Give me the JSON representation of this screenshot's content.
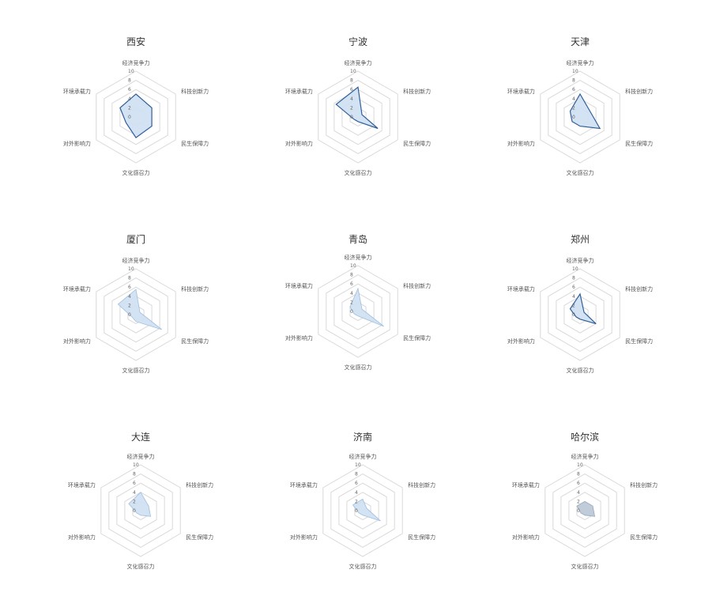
{
  "chart_data": [
    {
      "type": "radar",
      "title": "西安",
      "axes": [
        "经济竞争力",
        "科技创新力",
        "民生保障力",
        "文化感召力",
        "对外影响力",
        "环境承载力"
      ],
      "ticks": [
        0,
        2,
        4,
        6,
        8,
        10
      ],
      "ylim": [
        0,
        10
      ],
      "series": [
        {
          "values": [
            5,
            4,
            4,
            4.5,
            2.5,
            4
          ],
          "style": "filled-dark-outline"
        }
      ]
    },
    {
      "type": "radar",
      "title": "宁波",
      "axes": [
        "经济竞争力",
        "科技创新力",
        "民生保障力",
        "文化感召力",
        "对外影响力",
        "环境承载力"
      ],
      "ticks": [
        0,
        2,
        4,
        6,
        8,
        10
      ],
      "ylim": [
        0,
        10
      ],
      "series": [
        {
          "values": [
            6.5,
            1,
            5,
            1,
            1,
            5.5
          ],
          "style": "filled-dark-outline"
        }
      ]
    },
    {
      "type": "radar",
      "title": "天津",
      "axes": [
        "经济竞争力",
        "科技创新力",
        "民生保障力",
        "文化感召力",
        "对外影响力",
        "环境承载力"
      ],
      "ticks": [
        0,
        2,
        4,
        6,
        8,
        10
      ],
      "ylim": [
        0,
        10
      ],
      "series": [
        {
          "values": [
            5,
            2.5,
            5,
            2,
            2,
            2.5
          ],
          "style": "filled-dark-outline"
        }
      ]
    },
    {
      "type": "radar",
      "title": "厦门",
      "axes": [
        "经济竞争力",
        "科技创新力",
        "民生保障力",
        "文化感召力",
        "对外影响力",
        "环境承载力"
      ],
      "ticks": [
        0,
        2,
        4,
        6,
        8,
        10
      ],
      "ylim": [
        0,
        10
      ],
      "series": [
        {
          "values": [
            5.5,
            1,
            6.5,
            1.5,
            1,
            4.5
          ],
          "style": "filled-light"
        }
      ]
    },
    {
      "type": "radar",
      "title": "青岛",
      "axes": [
        "经济竞争力",
        "科技创新力",
        "民生保障力",
        "文化感召力",
        "对外影响力",
        "环境承载力"
      ],
      "ticks": [
        0,
        2,
        4,
        6,
        8,
        10
      ],
      "ylim": [
        0,
        10
      ],
      "series": [
        {
          "values": [
            5,
            1,
            6.5,
            1,
            1,
            2
          ],
          "style": "filled-light"
        }
      ]
    },
    {
      "type": "radar",
      "title": "郑州",
      "axes": [
        "经济竞争力",
        "科技创新力",
        "民生保障力",
        "文化感召力",
        "对外影响力",
        "环境承载力"
      ],
      "ticks": [
        0,
        2,
        4,
        6,
        8,
        10
      ],
      "ylim": [
        0,
        10
      ],
      "series": [
        {
          "values": [
            4.5,
            1,
            4,
            1,
            1,
            2.5
          ],
          "style": "filled-dark-outline"
        }
      ]
    },
    {
      "type": "radar",
      "title": "大连",
      "axes": [
        "经济竞争力",
        "科技创新力",
        "民生保障力",
        "文化感召力",
        "对外影响力",
        "环境承载力"
      ],
      "ticks": [
        0,
        2,
        4,
        6,
        8,
        10
      ],
      "ylim": [
        0,
        10
      ],
      "series": [
        {
          "values": [
            4,
            2,
            2.5,
            1,
            1,
            3
          ],
          "style": "filled-light"
        }
      ]
    },
    {
      "type": "radar",
      "title": "济南",
      "axes": [
        "经济竞争力",
        "科技创新力",
        "民生保障力",
        "文化感召力",
        "对外影响力",
        "环境承载力"
      ],
      "ticks": [
        0,
        2,
        4,
        6,
        8,
        10
      ],
      "ylim": [
        0,
        10
      ],
      "series": [
        {
          "values": [
            2.5,
            1,
            4.5,
            1,
            1,
            2.5
          ],
          "style": "filled-light"
        }
      ]
    },
    {
      "type": "radar",
      "title": "哈尔滨",
      "axes": [
        "经济竞争力",
        "科技创新力",
        "民生保障力",
        "文化感召力",
        "对外影响力",
        "环境承载力"
      ],
      "ticks": [
        0,
        2,
        4,
        6,
        8,
        10
      ],
      "ylim": [
        0,
        10
      ],
      "series": [
        {
          "values": [
            2,
            2,
            2.5,
            1,
            1,
            2
          ],
          "style": "filled-gray"
        }
      ]
    }
  ]
}
